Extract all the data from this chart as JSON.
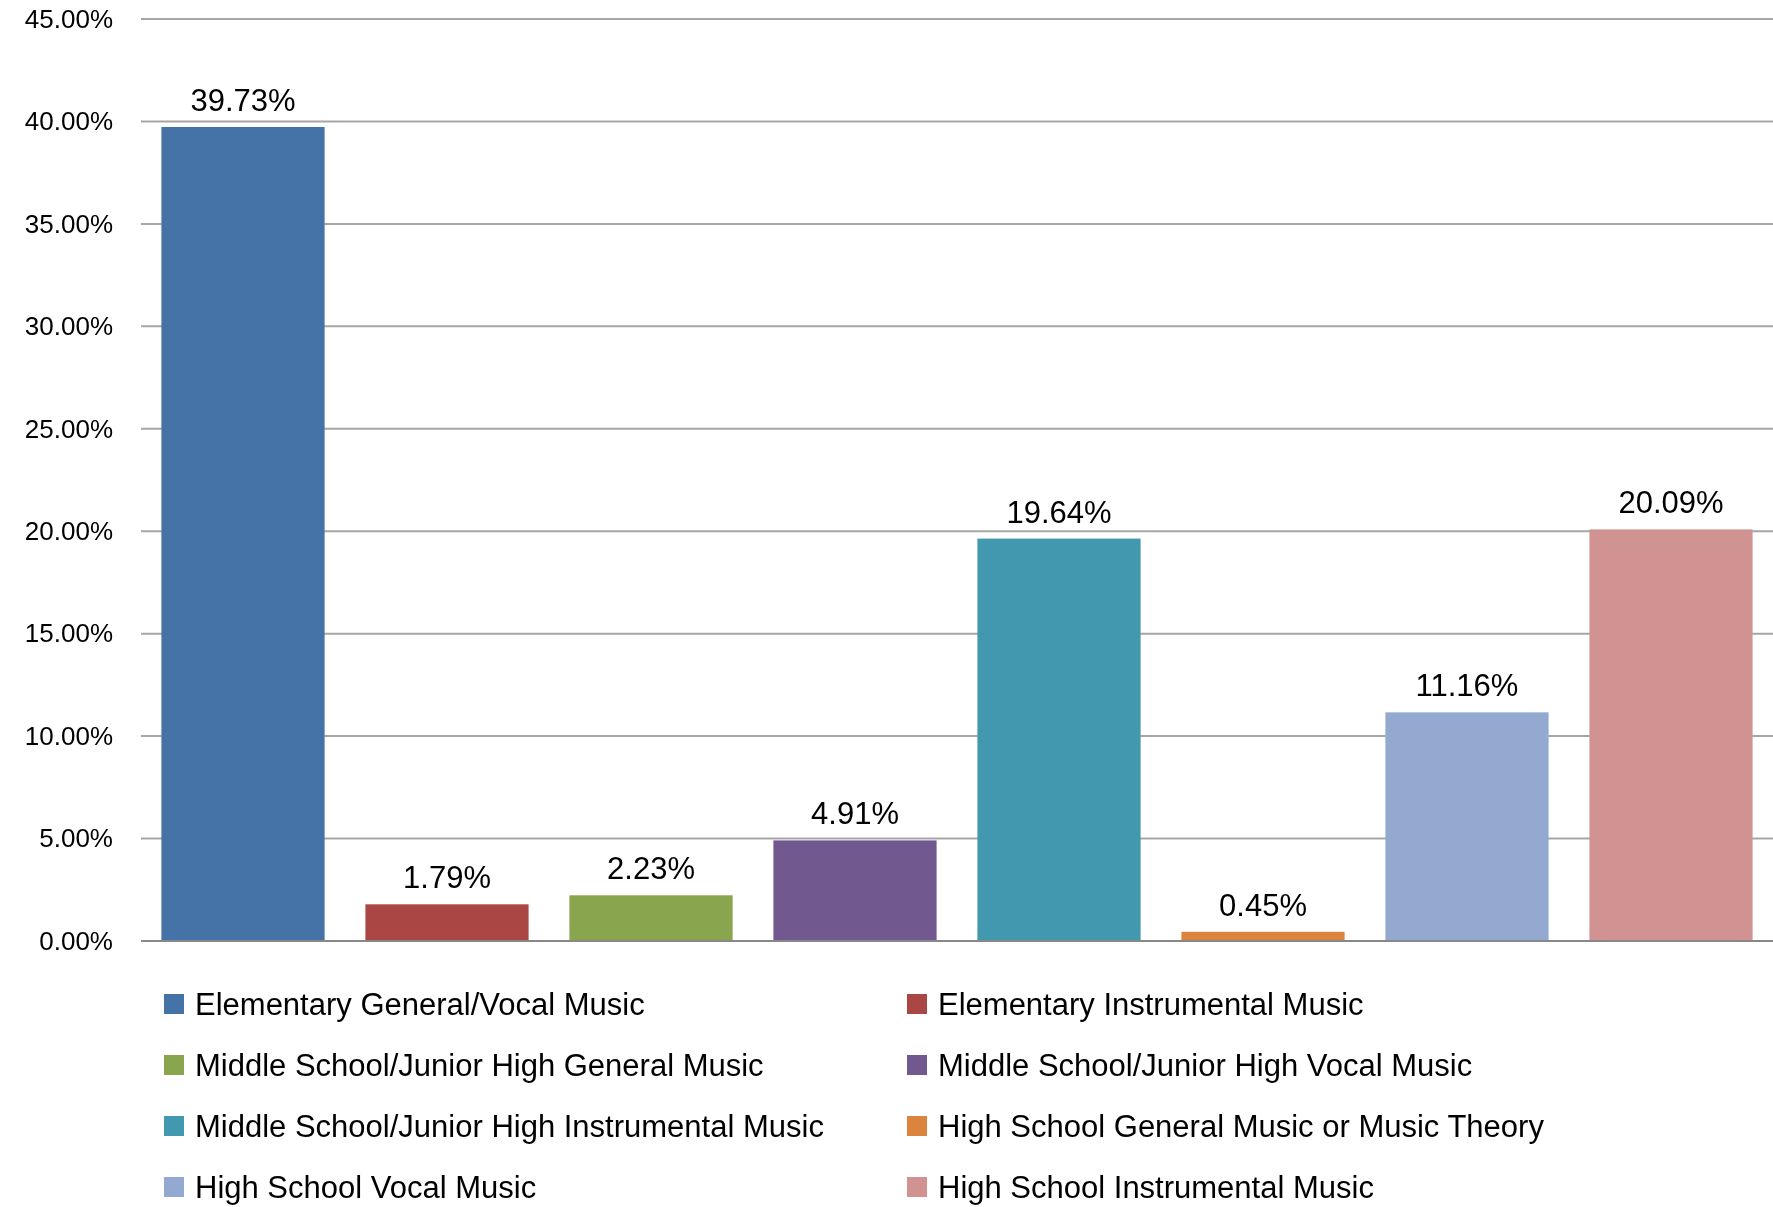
{
  "chart_data": {
    "type": "bar",
    "categories": [
      null,
      null,
      null,
      null,
      null,
      null,
      null,
      null
    ],
    "series": [
      {
        "name": "Elementary General/Vocal Music",
        "color": "#4572a7",
        "values": [
          39.73,
          null,
          null,
          null,
          null,
          null,
          null,
          null
        ],
        "value_labels": [
          "39.73%",
          null,
          null,
          null,
          null,
          null,
          null,
          null
        ]
      },
      {
        "name": "Elementary Instrumental Music",
        "color": "#aa4643",
        "values": [
          null,
          1.79,
          null,
          null,
          null,
          null,
          null,
          null
        ],
        "value_labels": [
          null,
          "1.79%",
          null,
          null,
          null,
          null,
          null,
          null
        ]
      },
      {
        "name": "Middle School/Junior High General Music",
        "color": "#89a54e",
        "values": [
          null,
          null,
          2.23,
          null,
          null,
          null,
          null,
          null
        ],
        "value_labels": [
          null,
          null,
          "2.23%",
          null,
          null,
          null,
          null,
          null
        ]
      },
      {
        "name": "Middle School/Junior High Vocal Music",
        "color": "#71588f",
        "values": [
          null,
          null,
          null,
          4.91,
          null,
          null,
          null,
          null
        ],
        "value_labels": [
          null,
          null,
          null,
          "4.91%",
          null,
          null,
          null,
          null
        ]
      },
      {
        "name": "Middle School/Junior High Instrumental Music",
        "color": "#4198af",
        "values": [
          null,
          null,
          null,
          null,
          19.64,
          null,
          null,
          null
        ],
        "value_labels": [
          null,
          null,
          null,
          null,
          "19.64%",
          null,
          null,
          null
        ]
      },
      {
        "name": "High School General Music or Music Theory",
        "color": "#db843d",
        "values": [
          null,
          null,
          null,
          null,
          null,
          0.45,
          null,
          null
        ],
        "value_labels": [
          null,
          null,
          null,
          null,
          null,
          "0.45%",
          null,
          null
        ]
      },
      {
        "name": "High School Vocal Music",
        "color": "#93a9cf",
        "values": [
          null,
          null,
          null,
          null,
          null,
          null,
          11.16,
          null
        ],
        "value_labels": [
          null,
          null,
          null,
          null,
          null,
          null,
          "11.16%",
          null
        ]
      },
      {
        "name": "High School Instrumental Music",
        "color": "#d19392",
        "values": [
          null,
          null,
          null,
          null,
          null,
          null,
          null,
          20.09
        ],
        "value_labels": [
          null,
          null,
          null,
          null,
          null,
          null,
          null,
          "20.09%"
        ]
      }
    ],
    "ylim": [
      0,
      45
    ],
    "yticks": [
      {
        "value": 0,
        "label": "0.00%"
      },
      {
        "value": 5,
        "label": "5.00%"
      },
      {
        "value": 10,
        "label": "10.00%"
      },
      {
        "value": 15,
        "label": "15.00%"
      },
      {
        "value": 20,
        "label": "20.00%"
      },
      {
        "value": 25,
        "label": "25.00%"
      },
      {
        "value": 30,
        "label": "30.00%"
      },
      {
        "value": 35,
        "label": "35.00%"
      },
      {
        "value": 40,
        "label": "40.00%"
      },
      {
        "value": 45,
        "label": "45.00%"
      }
    ],
    "grid": "y",
    "legend": "bottom"
  }
}
